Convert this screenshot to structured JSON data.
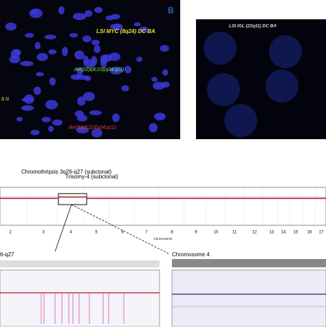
{
  "panel_a": {
    "probe_label": "LSI MYC (8q24) DC BA",
    "annotations": [
      "der(22)t(8;22)(q24;q11)",
      "8 N",
      "der(8)t(8;22)(q24;q11)"
    ]
  },
  "panel_b": {
    "label": "B",
    "probe_label": "LSI IGL (22q11) DC BA"
  },
  "genome_plot": {
    "annotations": [
      "Chromothripsis 3q26-q27 (subclonal)",
      "Trisomy-4 (subclonal)"
    ],
    "chromosomes": [
      "2",
      "3",
      "4",
      "5",
      "6",
      "7",
      "8",
      "9",
      "10",
      "11",
      "12",
      "13",
      "14",
      "15",
      "16",
      "17"
    ],
    "axis_label": "Chromosome"
  },
  "zoom_left": {
    "title": "6-q27"
  },
  "zoom_right": {
    "title": "Chromosome 4"
  }
}
